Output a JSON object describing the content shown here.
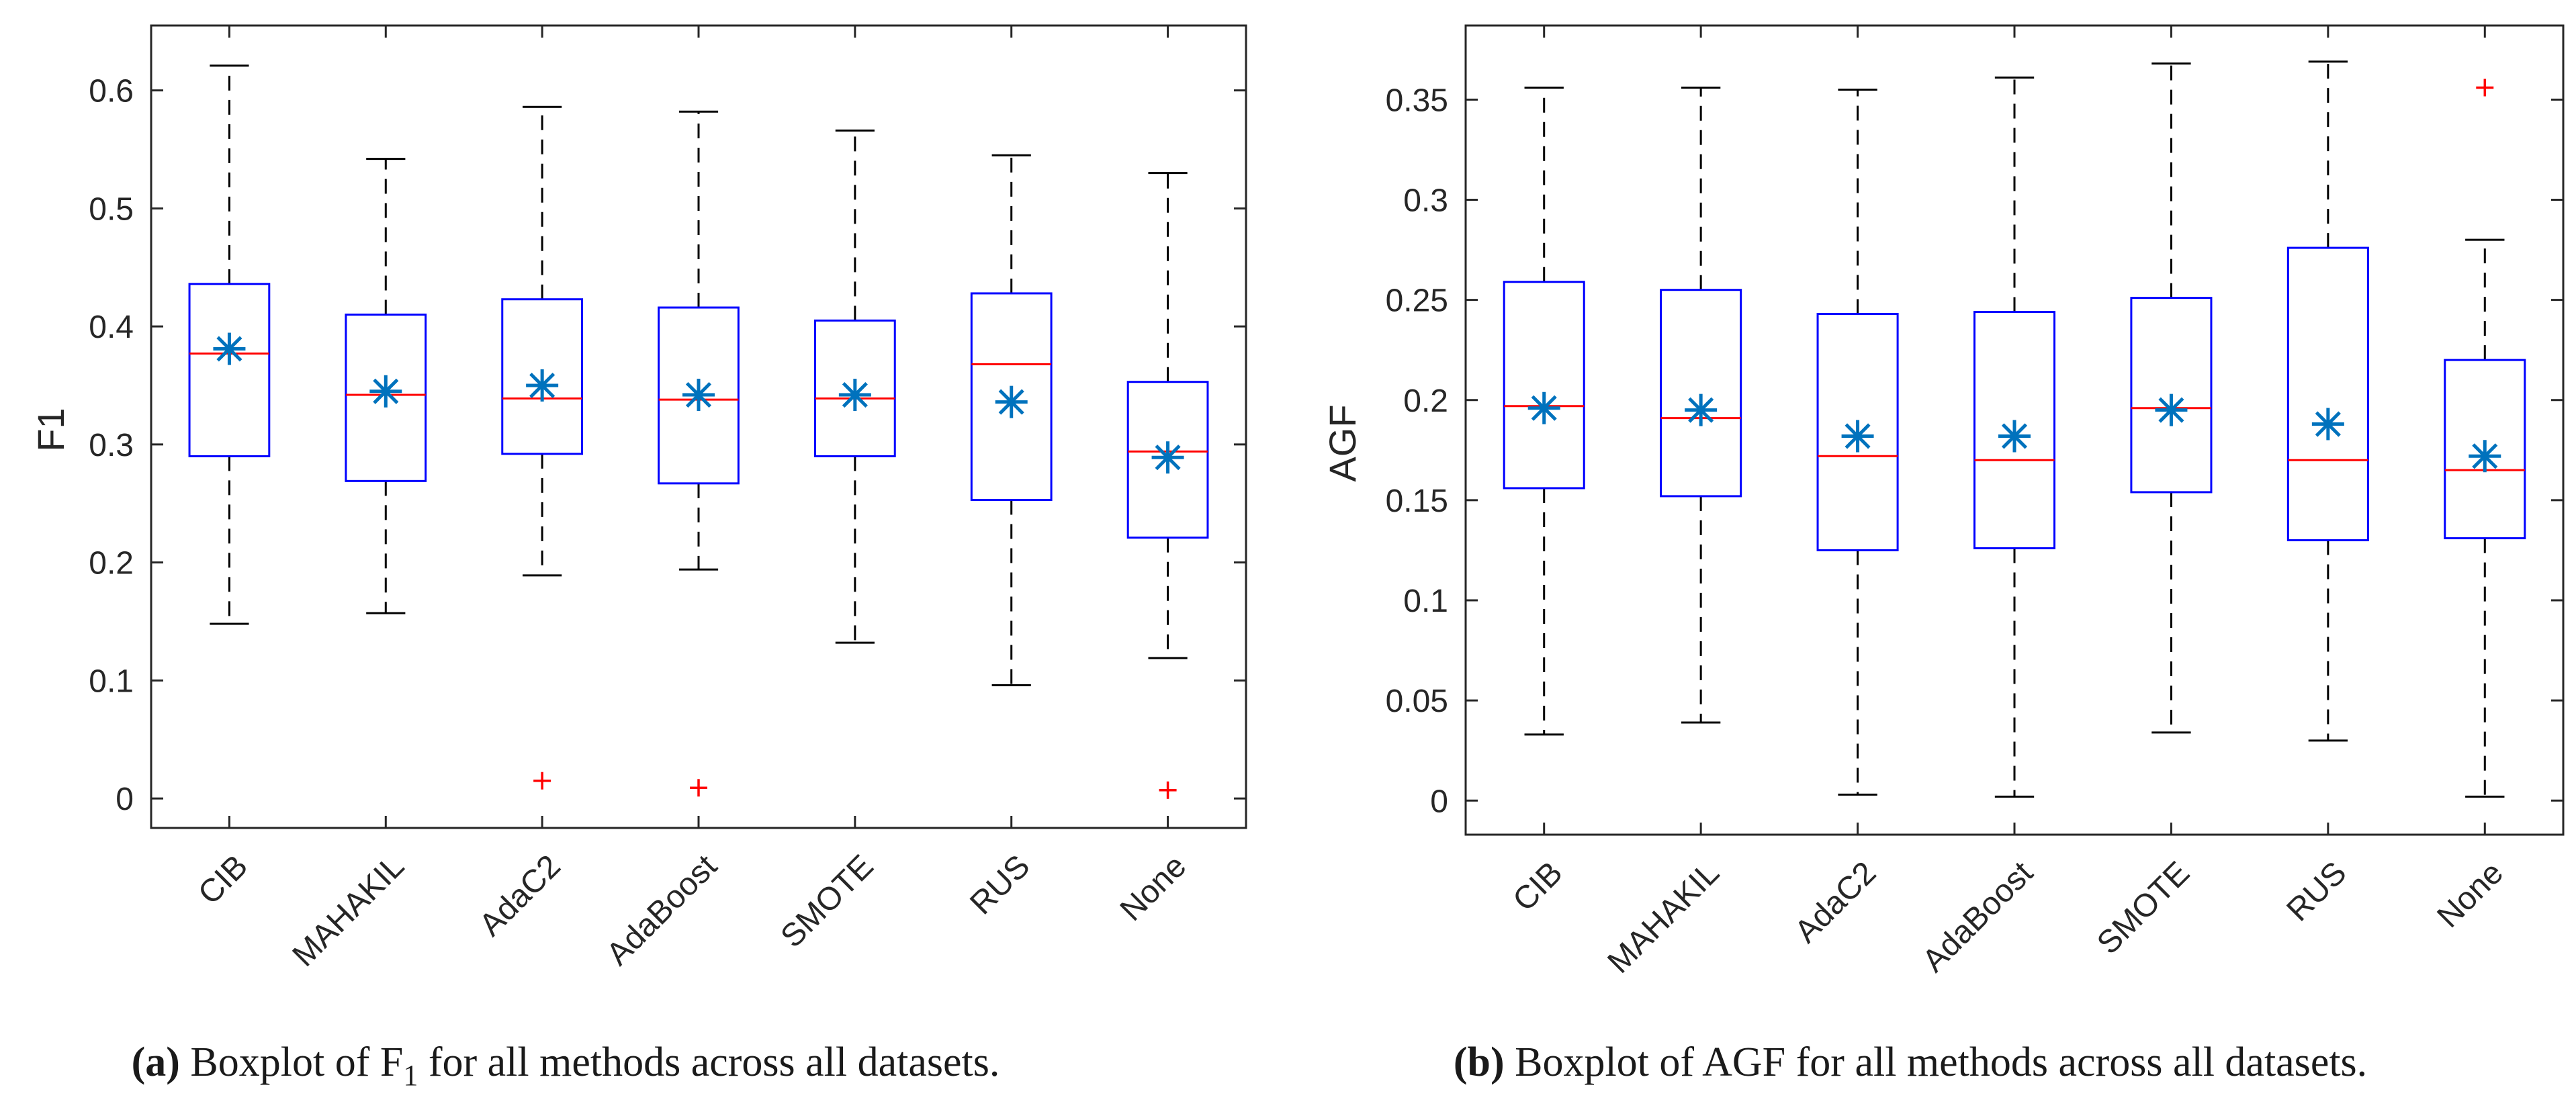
{
  "panels": [
    {
      "id": "a",
      "ylabel": "F1",
      "caption_letter": "(a)",
      "caption_text": " Boxplot of F",
      "caption_sub": "1",
      "caption_tail": " for all methods across all datasets.",
      "y_ticks": [
        "0",
        "0.1",
        "0.2",
        "0.3",
        "0.4",
        "0.5",
        "0.6"
      ]
    },
    {
      "id": "b",
      "ylabel": "AGF",
      "caption_letter": "(b)",
      "caption_text": " Boxplot of AGF for all methods across all datasets.",
      "caption_sub": "",
      "caption_tail": "",
      "y_ticks": [
        "0",
        "0.05",
        "0.1",
        "0.15",
        "0.2",
        "0.25",
        "0.3",
        "0.35"
      ]
    }
  ],
  "chart_data": [
    {
      "type": "boxplot",
      "title": "",
      "xlabel": "",
      "ylabel": "F1",
      "ylim": [
        -0.025,
        0.655
      ],
      "yticks": [
        0,
        0.1,
        0.2,
        0.3,
        0.4,
        0.5,
        0.6
      ],
      "categories": [
        "CIB",
        "MAHAKIL",
        "AdaC2",
        "AdaBoost",
        "SMOTE",
        "RUS",
        "None"
      ],
      "boxes": [
        {
          "whisker_low": 0.148,
          "q1": 0.29,
          "median": 0.377,
          "q3": 0.436,
          "whisker_high": 0.621,
          "mean": 0.381,
          "outliers": []
        },
        {
          "whisker_low": 0.157,
          "q1": 0.269,
          "median": 0.342,
          "q3": 0.41,
          "whisker_high": 0.542,
          "mean": 0.345,
          "outliers": []
        },
        {
          "whisker_low": 0.189,
          "q1": 0.292,
          "median": 0.339,
          "q3": 0.423,
          "whisker_high": 0.586,
          "mean": 0.35,
          "outliers": [
            0.015
          ]
        },
        {
          "whisker_low": 0.194,
          "q1": 0.267,
          "median": 0.338,
          "q3": 0.416,
          "whisker_high": 0.582,
          "mean": 0.342,
          "outliers": [
            0.009
          ]
        },
        {
          "whisker_low": 0.132,
          "q1": 0.29,
          "median": 0.339,
          "q3": 0.405,
          "whisker_high": 0.566,
          "mean": 0.342,
          "outliers": []
        },
        {
          "whisker_low": 0.096,
          "q1": 0.253,
          "median": 0.368,
          "q3": 0.428,
          "whisker_high": 0.545,
          "mean": 0.336,
          "outliers": []
        },
        {
          "whisker_low": 0.119,
          "q1": 0.221,
          "median": 0.294,
          "q3": 0.353,
          "whisker_high": 0.53,
          "mean": 0.289,
          "outliers": [
            0.007
          ]
        }
      ]
    },
    {
      "type": "boxplot",
      "title": "",
      "xlabel": "",
      "ylabel": "AGF",
      "ylim": [
        -0.017,
        0.387
      ],
      "yticks": [
        0,
        0.05,
        0.1,
        0.15,
        0.2,
        0.25,
        0.3,
        0.35
      ],
      "categories": [
        "CIB",
        "MAHAKIL",
        "AdaC2",
        "AdaBoost",
        "SMOTE",
        "RUS",
        "None"
      ],
      "boxes": [
        {
          "whisker_low": 0.033,
          "q1": 0.156,
          "median": 0.197,
          "q3": 0.259,
          "whisker_high": 0.356,
          "mean": 0.196,
          "outliers": []
        },
        {
          "whisker_low": 0.039,
          "q1": 0.152,
          "median": 0.191,
          "q3": 0.255,
          "whisker_high": 0.356,
          "mean": 0.195,
          "outliers": []
        },
        {
          "whisker_low": 0.003,
          "q1": 0.125,
          "median": 0.172,
          "q3": 0.243,
          "whisker_high": 0.355,
          "mean": 0.182,
          "outliers": []
        },
        {
          "whisker_low": 0.002,
          "q1": 0.126,
          "median": 0.17,
          "q3": 0.244,
          "whisker_high": 0.361,
          "mean": 0.182,
          "outliers": []
        },
        {
          "whisker_low": 0.034,
          "q1": 0.154,
          "median": 0.196,
          "q3": 0.251,
          "whisker_high": 0.368,
          "mean": 0.195,
          "outliers": []
        },
        {
          "whisker_low": 0.03,
          "q1": 0.13,
          "median": 0.17,
          "q3": 0.276,
          "whisker_high": 0.369,
          "mean": 0.188,
          "outliers": []
        },
        {
          "whisker_low": 0.002,
          "q1": 0.131,
          "median": 0.165,
          "q3": 0.22,
          "whisker_high": 0.28,
          "mean": 0.172,
          "outliers": [
            0.356
          ]
        }
      ]
    }
  ],
  "colors": {
    "box": "#0000ff",
    "median": "#ff0000",
    "whisker": "#000000",
    "mean_marker": "#0072bd",
    "outlier": "#ff0000",
    "axes": "#262626"
  }
}
